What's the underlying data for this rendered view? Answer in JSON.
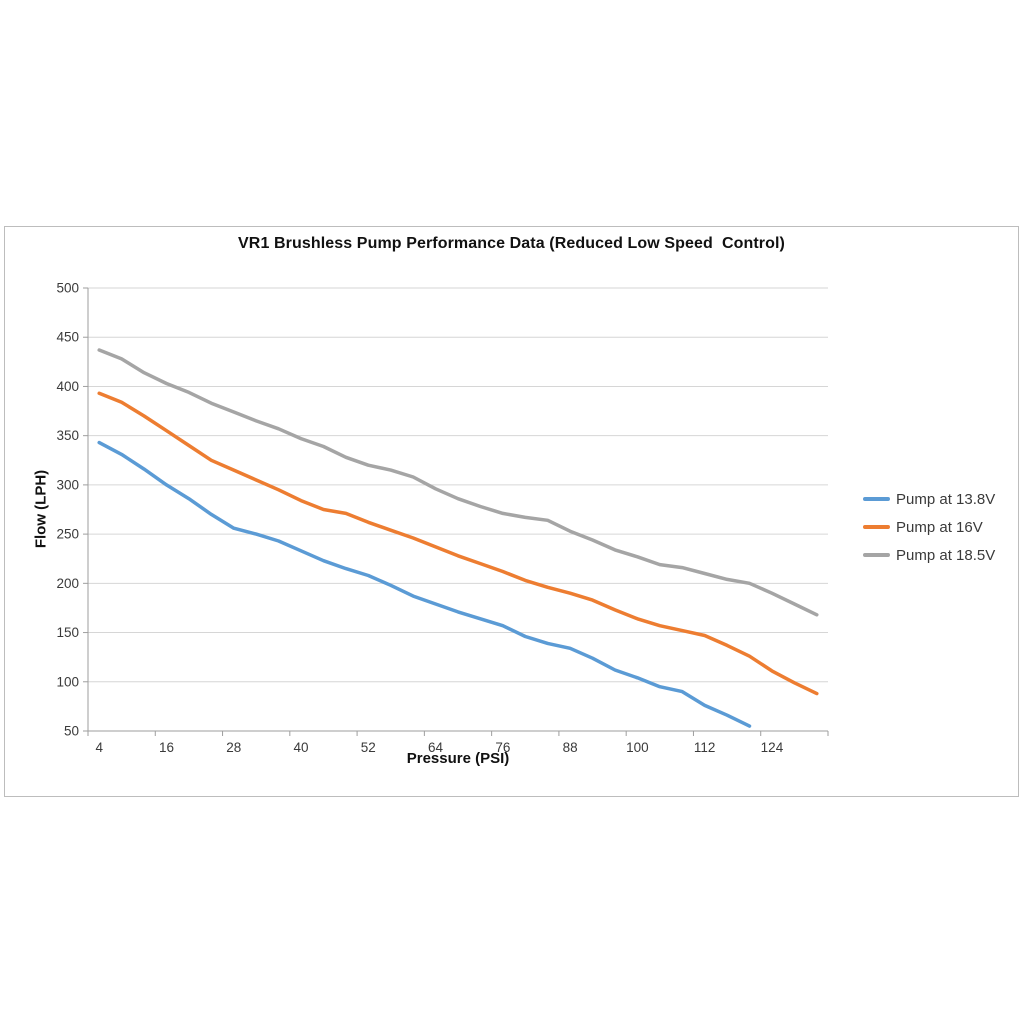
{
  "chart_data": {
    "type": "line",
    "title": "VR1 Brushless Pump Performance Data (Reduced Low Speed  Control)",
    "xlabel": "Pressure (PSI)",
    "ylabel": "Flow (LPH)",
    "ylim": [
      50,
      500
    ],
    "y_ticks": [
      50,
      100,
      150,
      200,
      250,
      300,
      350,
      400,
      450,
      500
    ],
    "x_tick_labels": [
      4,
      16,
      28,
      40,
      52,
      64,
      76,
      88,
      100,
      112,
      124
    ],
    "x_categories": [
      4,
      8,
      12,
      16,
      20,
      24,
      28,
      32,
      36,
      40,
      44,
      48,
      52,
      56,
      60,
      64,
      68,
      72,
      76,
      80,
      84,
      88,
      92,
      96,
      100,
      104,
      108,
      112,
      116,
      120,
      124,
      128,
      132
    ],
    "grid": "horizontal",
    "legend_position": "right",
    "series": [
      {
        "name": "Pump at 13.8V",
        "color": "#5B9BD5",
        "x": [
          4,
          8,
          12,
          16,
          20,
          24,
          28,
          32,
          36,
          40,
          44,
          48,
          52,
          56,
          60,
          64,
          68,
          72,
          76,
          80,
          84,
          88,
          92,
          96,
          100,
          104,
          108,
          112,
          116,
          120
        ],
        "values": [
          343,
          331,
          316,
          300,
          286,
          270,
          256,
          250,
          243,
          233,
          223,
          215,
          208,
          198,
          187,
          179,
          171,
          164,
          157,
          146,
          139,
          134,
          124,
          112,
          104,
          95,
          90,
          76,
          66,
          55
        ]
      },
      {
        "name": "Pump at 16V",
        "color": "#ED7D31",
        "x": [
          4,
          8,
          12,
          16,
          20,
          24,
          28,
          32,
          36,
          40,
          44,
          48,
          52,
          56,
          60,
          64,
          68,
          72,
          76,
          80,
          84,
          88,
          92,
          96,
          100,
          104,
          108,
          112,
          116,
          120,
          124,
          128,
          132
        ],
        "values": [
          393,
          384,
          370,
          355,
          340,
          325,
          315,
          305,
          295,
          284,
          275,
          271,
          262,
          254,
          246,
          237,
          228,
          220,
          212,
          203,
          196,
          190,
          183,
          173,
          164,
          157,
          152,
          147,
          137,
          126,
          111,
          99,
          88
        ]
      },
      {
        "name": "Pump at 18.5V",
        "color": "#A5A5A5",
        "x": [
          4,
          8,
          12,
          16,
          20,
          24,
          28,
          32,
          36,
          40,
          44,
          48,
          52,
          56,
          60,
          64,
          68,
          72,
          76,
          80,
          84,
          88,
          92,
          96,
          100,
          104,
          108,
          112,
          116,
          120,
          124,
          128,
          132
        ],
        "values": [
          437,
          428,
          414,
          403,
          394,
          383,
          374,
          365,
          357,
          347,
          339,
          328,
          320,
          315,
          308,
          296,
          286,
          278,
          271,
          267,
          264,
          253,
          244,
          234,
          227,
          219,
          216,
          210,
          204,
          200,
          190,
          179,
          168
        ]
      }
    ],
    "colors": {
      "gridline": "#d6d6d6",
      "axis": "#9e9e9e",
      "tick_label": "#3a3a3a"
    }
  }
}
